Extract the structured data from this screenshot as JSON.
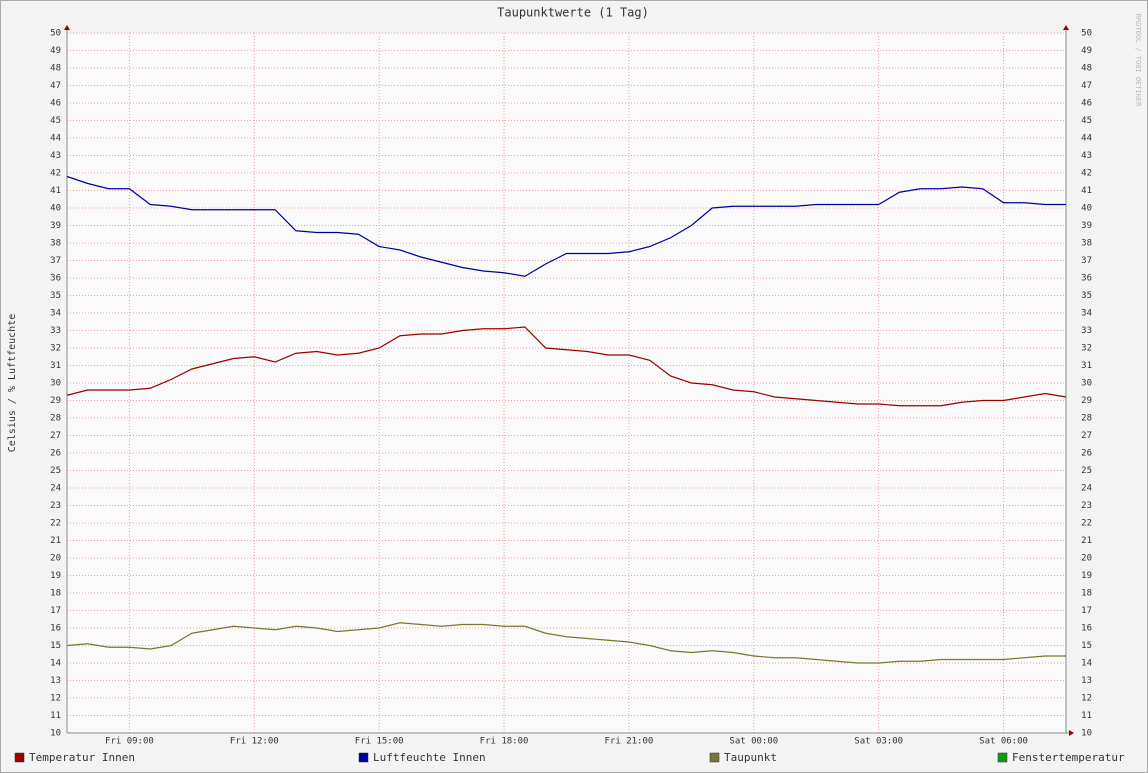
{
  "chart_data": {
    "type": "line",
    "title": "Taupunktwerte (1 Tag)",
    "y_label": "Celsius / % Luftfeuchte",
    "watermark": "RRDTOOL / TOBI OETIKER",
    "x": [
      7.5,
      8,
      8.5,
      9,
      9.5,
      10,
      10.5,
      11,
      11.5,
      12,
      12.5,
      13,
      13.5,
      14,
      14.5,
      15,
      15.5,
      16,
      16.5,
      17,
      17.5,
      18,
      18.5,
      19,
      19.5,
      20,
      20.5,
      21,
      21.5,
      22,
      22.5,
      23,
      23.5,
      24,
      24.5,
      25,
      25.5,
      26,
      26.5,
      27,
      27.5,
      28,
      28.5,
      29,
      29.5,
      30,
      30.5,
      31,
      31.5
    ],
    "xlim": [
      7.5,
      31.5
    ],
    "xticks": [
      {
        "value": 9,
        "label": "Fri 09:00"
      },
      {
        "value": 12,
        "label": "Fri 12:00"
      },
      {
        "value": 15,
        "label": "Fri 15:00"
      },
      {
        "value": 18,
        "label": "Fri 18:00"
      },
      {
        "value": 21,
        "label": "Fri 21:00"
      },
      {
        "value": 24,
        "label": "Sat 00:00"
      },
      {
        "value": 27,
        "label": "Sat 03:00"
      },
      {
        "value": 30,
        "label": "Sat 06:00"
      }
    ],
    "ylim": [
      10,
      50
    ],
    "yticks": [
      10,
      11,
      12,
      13,
      14,
      15,
      16,
      17,
      18,
      19,
      20,
      21,
      22,
      23,
      24,
      25,
      26,
      27,
      28,
      29,
      30,
      31,
      32,
      33,
      34,
      35,
      36,
      37,
      38,
      39,
      40,
      41,
      42,
      43,
      44,
      45,
      46,
      47,
      48,
      49,
      50
    ],
    "grid": true,
    "legend": "bottom",
    "series": [
      {
        "name": "Temperatur Innen",
        "color": "#990000",
        "values": [
          29.3,
          29.6,
          29.6,
          29.6,
          29.7,
          30.2,
          30.8,
          31.1,
          31.4,
          31.5,
          31.2,
          31.7,
          31.8,
          31.6,
          31.7,
          32.0,
          32.7,
          32.8,
          32.8,
          33.0,
          33.1,
          33.1,
          33.2,
          32.0,
          31.9,
          31.8,
          31.6,
          31.6,
          31.3,
          30.4,
          30.0,
          29.9,
          29.6,
          29.5,
          29.2,
          29.1,
          29.0,
          28.9,
          28.8,
          28.8,
          28.7,
          28.7,
          28.7,
          28.9,
          29.0,
          29.0,
          29.2,
          29.4,
          29.2
        ]
      },
      {
        "name": "Luftfeuchte Innen",
        "color": "#000099",
        "values": [
          41.8,
          41.4,
          41.1,
          41.1,
          40.2,
          40.1,
          39.9,
          39.9,
          39.9,
          39.9,
          39.9,
          38.7,
          38.6,
          38.6,
          38.5,
          37.8,
          37.6,
          37.2,
          36.9,
          36.6,
          36.4,
          36.3,
          36.1,
          36.8,
          37.4,
          37.4,
          37.4,
          37.5,
          37.8,
          38.3,
          39.0,
          40.0,
          40.1,
          40.1,
          40.1,
          40.1,
          40.2,
          40.2,
          40.2,
          40.2,
          40.9,
          41.1,
          41.1,
          41.2,
          41.1,
          40.3,
          40.3,
          40.2,
          40.2
        ]
      },
      {
        "name": "Taupunkt",
        "color": "#777733",
        "values": [
          15.0,
          15.1,
          14.9,
          14.9,
          14.8,
          15.0,
          15.7,
          15.9,
          16.1,
          16.0,
          15.9,
          16.1,
          16.0,
          15.8,
          15.9,
          16.0,
          16.3,
          16.2,
          16.1,
          16.2,
          16.2,
          16.1,
          16.1,
          15.7,
          15.5,
          15.4,
          15.3,
          15.2,
          15.0,
          14.7,
          14.6,
          14.7,
          14.6,
          14.4,
          14.3,
          14.3,
          14.2,
          14.1,
          14.0,
          14.0,
          14.1,
          14.1,
          14.2,
          14.2,
          14.2,
          14.2,
          14.3,
          14.4,
          14.4
        ]
      },
      {
        "name": "Fenstertemperatur",
        "color": "#119911",
        "values": [
          null,
          null,
          null,
          null,
          null,
          null,
          null,
          null,
          null,
          null,
          null,
          null,
          null,
          null,
          null,
          null,
          null,
          null,
          null,
          null,
          null,
          null,
          null,
          null,
          null,
          null,
          null,
          null,
          null,
          null,
          null,
          null,
          null,
          null,
          null,
          null,
          null,
          null,
          null,
          null,
          null,
          null,
          null,
          null,
          null,
          null,
          null,
          null,
          null
        ]
      }
    ]
  }
}
